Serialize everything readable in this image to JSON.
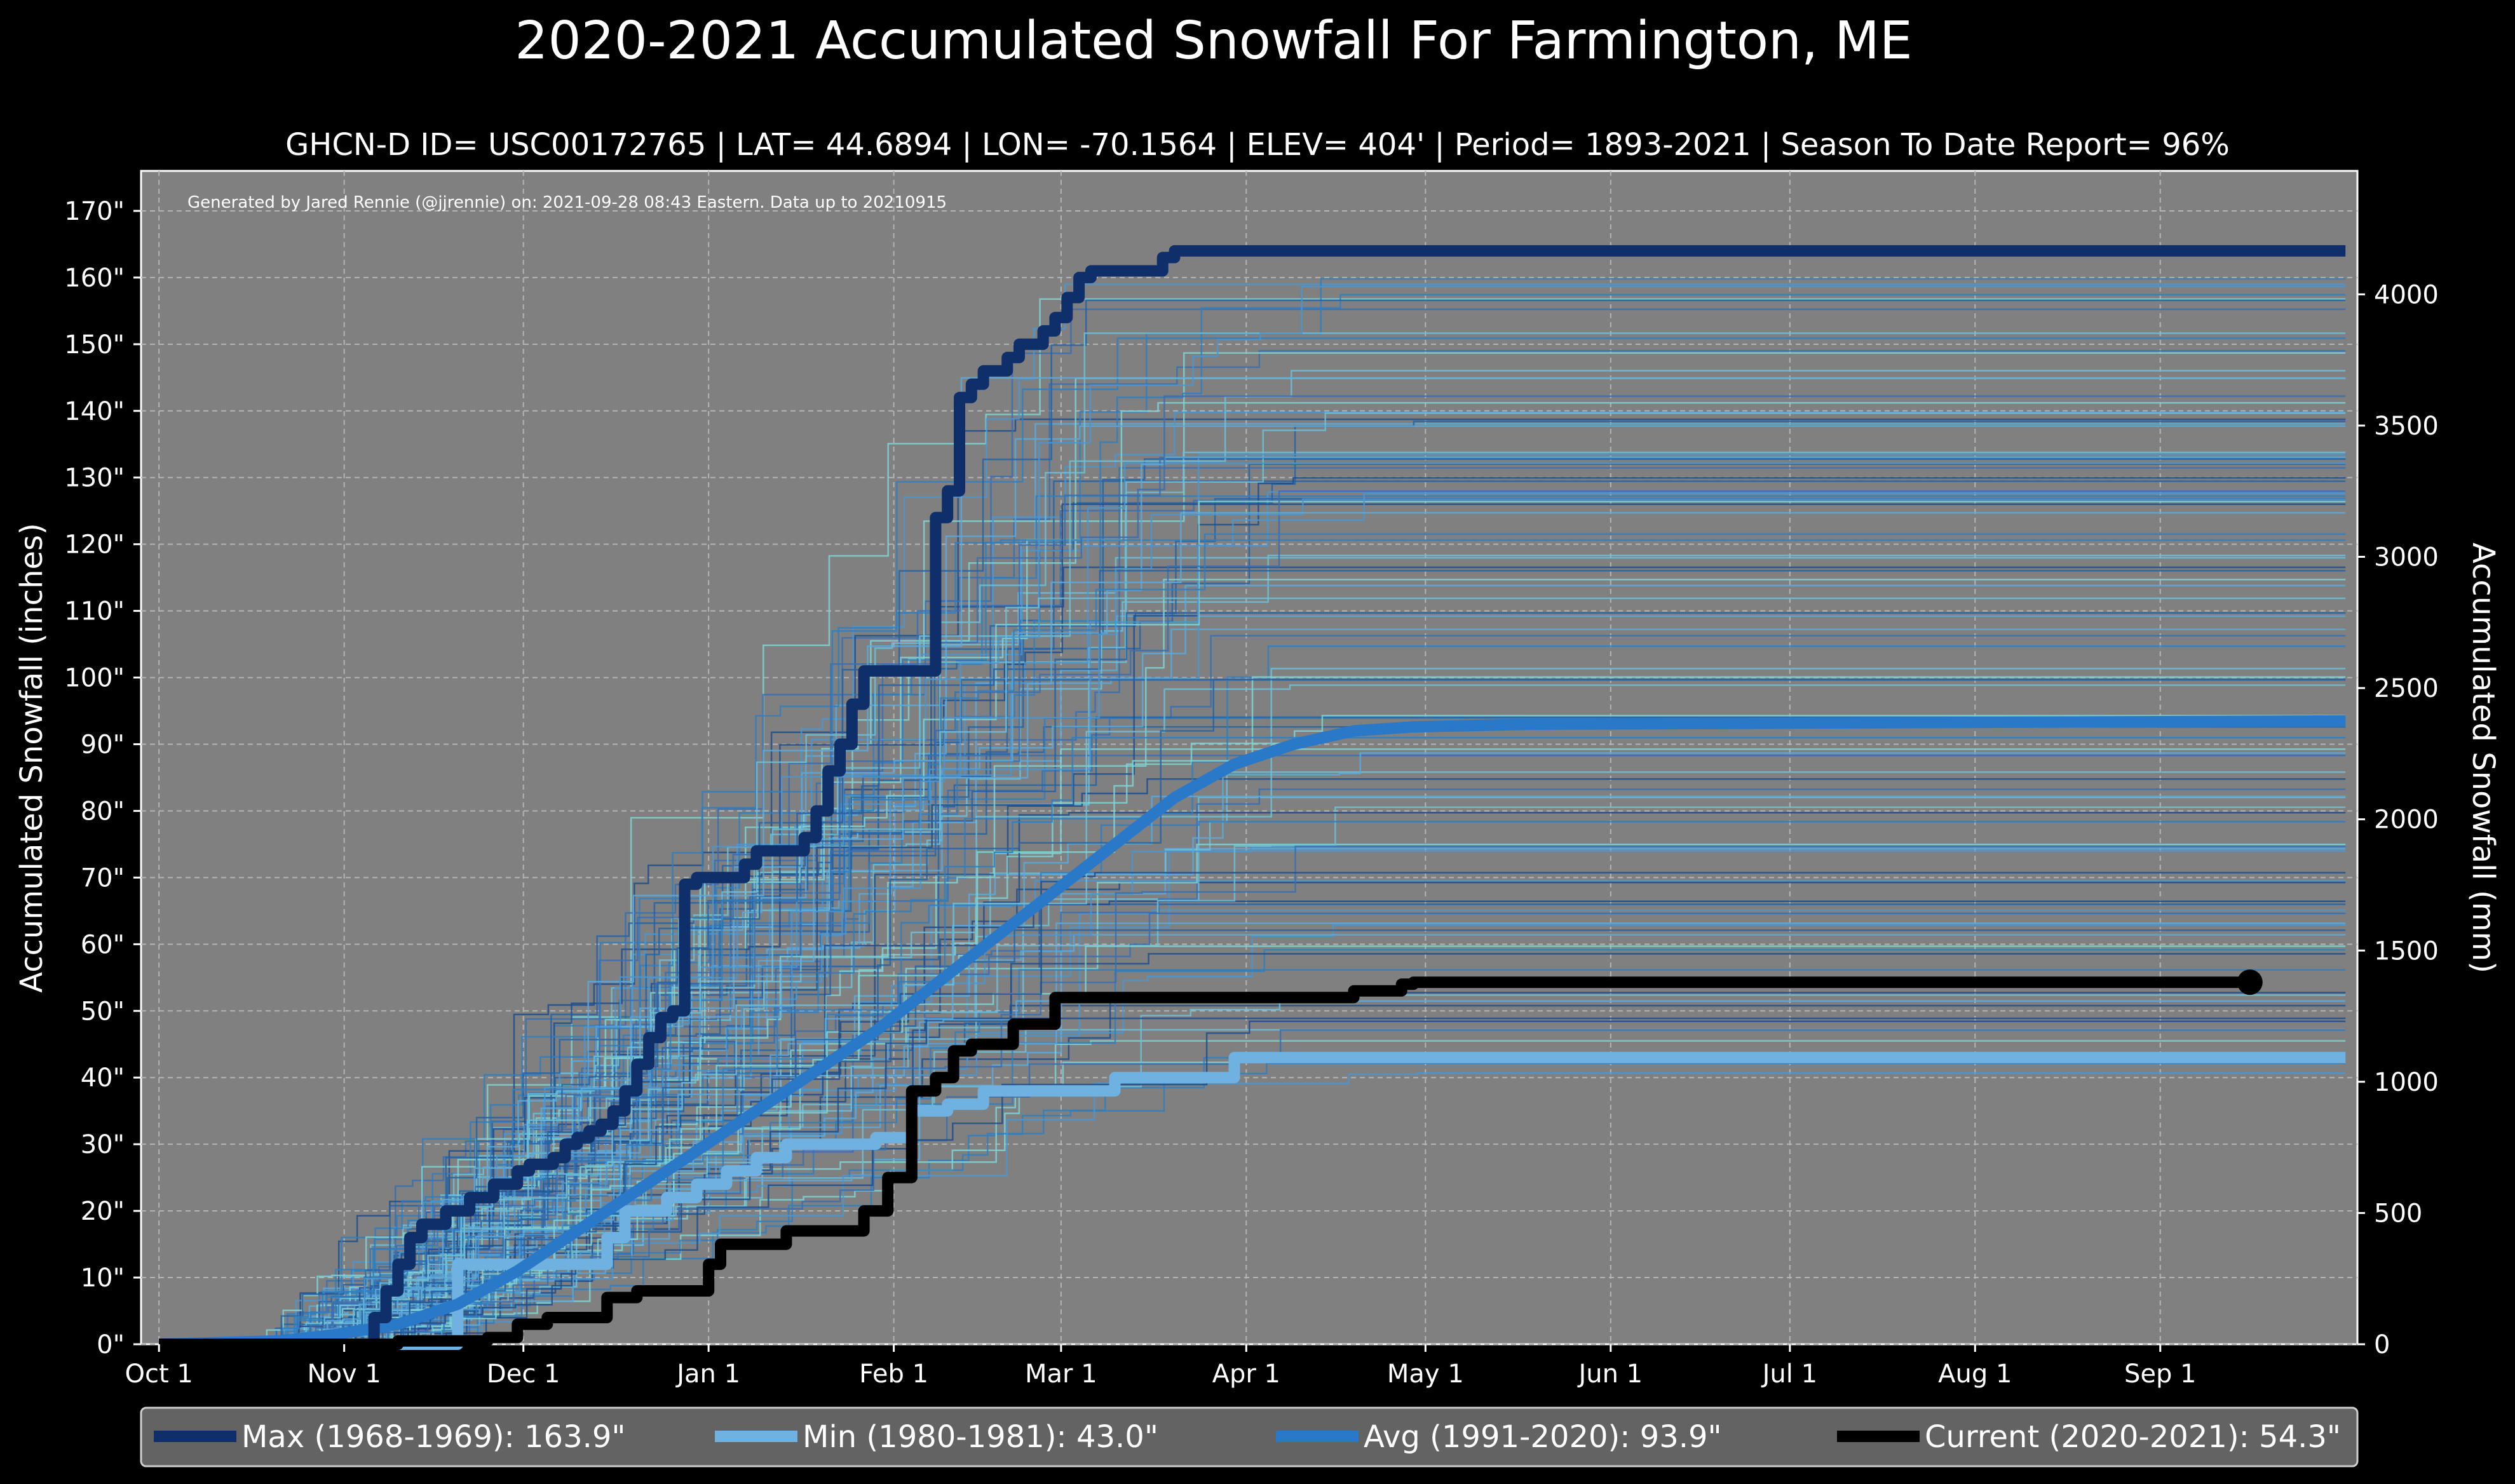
{
  "chart_data": {
    "type": "line",
    "title": "2020-2021 Accumulated Snowfall For Farmington, ME",
    "subtitle": "GHCN-D ID= USC00172765 | LAT= 44.6894 | LON= -70.1564 | ELEV= 404' | Period= 1893-2021 | Season To Date Report= 96%",
    "credit": "Generated by Jared Rennie (@jjrennie) on: 2021-09-28 08:43 Eastern. Data up to 20210915",
    "ylabel": "Accumulated Snowfall (inches)",
    "ylabel_right": "Accumulated Snowfall (mm)",
    "xlim": [
      -3,
      368
    ],
    "ylim": [
      0,
      176
    ],
    "x_ticks": [
      {
        "day": 0,
        "label": "Oct 1"
      },
      {
        "day": 31,
        "label": "Nov 1"
      },
      {
        "day": 61,
        "label": "Dec 1"
      },
      {
        "day": 92,
        "label": "Jan 1"
      },
      {
        "day": 123,
        "label": "Feb 1"
      },
      {
        "day": 151,
        "label": "Mar 1"
      },
      {
        "day": 182,
        "label": "Apr 1"
      },
      {
        "day": 212,
        "label": "May 1"
      },
      {
        "day": 243,
        "label": "Jun 1"
      },
      {
        "day": 273,
        "label": "Jul 1"
      },
      {
        "day": 304,
        "label": "Aug 1"
      },
      {
        "day": 335,
        "label": "Sep 1"
      }
    ],
    "y_ticks": [
      {
        "value": 0,
        "label": "0\""
      },
      {
        "value": 10,
        "label": "10\""
      },
      {
        "value": 20,
        "label": "20\""
      },
      {
        "value": 30,
        "label": "30\""
      },
      {
        "value": 40,
        "label": "40\""
      },
      {
        "value": 50,
        "label": "50\""
      },
      {
        "value": 60,
        "label": "60\""
      },
      {
        "value": 70,
        "label": "70\""
      },
      {
        "value": 80,
        "label": "80\""
      },
      {
        "value": 90,
        "label": "90\""
      },
      {
        "value": 100,
        "label": "100\""
      },
      {
        "value": 110,
        "label": "110\""
      },
      {
        "value": 120,
        "label": "120\""
      },
      {
        "value": 130,
        "label": "130\""
      },
      {
        "value": 140,
        "label": "140\""
      },
      {
        "value": 150,
        "label": "150\""
      },
      {
        "value": 160,
        "label": "160\""
      },
      {
        "value": 170,
        "label": "170\""
      }
    ],
    "y2_ticks": [
      {
        "value": 0,
        "label": "0"
      },
      {
        "value": 500,
        "label": "500"
      },
      {
        "value": 1000,
        "label": "1000"
      },
      {
        "value": 1500,
        "label": "1500"
      },
      {
        "value": 2000,
        "label": "2000"
      },
      {
        "value": 2500,
        "label": "2500"
      },
      {
        "value": 3000,
        "label": "3000"
      },
      {
        "value": 3500,
        "label": "3500"
      },
      {
        "value": 4000,
        "label": "4000"
      }
    ],
    "grid": true,
    "legend_position": "bottom",
    "series": [
      {
        "name": "Max (1968-1969):  163.9\"",
        "color": "#0f2f6b",
        "width": 18,
        "x": [
          0,
          34,
          36,
          38,
          40,
          42,
          44,
          46,
          48,
          50,
          52,
          54,
          56,
          58,
          60,
          62,
          64,
          66,
          68,
          70,
          72,
          74,
          76,
          78,
          80,
          82,
          84,
          86,
          88,
          90,
          92,
          94,
          96,
          98,
          100,
          102,
          104,
          106,
          108,
          110,
          112,
          114,
          116,
          118,
          120,
          122,
          124,
          126,
          128,
          130,
          132,
          134,
          136,
          138,
          140,
          142,
          144,
          146,
          148,
          150,
          152,
          154,
          156,
          158,
          160,
          162,
          164,
          166,
          168,
          170,
          172,
          174,
          176,
          178,
          180,
          182,
          184,
          186,
          188,
          190,
          192,
          194,
          196,
          198,
          200,
          202,
          366
        ],
        "y": [
          0,
          0,
          4,
          8,
          12,
          16,
          18,
          18,
          20,
          20,
          22,
          22,
          24,
          24,
          26,
          27,
          27,
          28,
          30,
          31,
          32,
          33,
          35,
          38,
          42,
          46,
          49,
          50,
          69,
          70,
          70,
          70,
          70,
          72,
          74,
          74,
          74,
          74,
          76,
          80,
          86,
          90,
          96,
          101,
          101,
          101,
          101,
          101,
          101,
          124,
          128,
          142,
          144,
          146,
          146,
          148,
          150,
          150,
          152,
          154,
          157,
          160,
          161,
          161,
          161,
          161,
          161,
          161,
          163,
          164,
          164,
          164,
          164,
          164,
          164,
          164,
          164,
          164,
          164,
          164,
          164,
          164,
          164,
          164,
          164,
          164,
          164
        ]
      },
      {
        "name": "Min (1980-1981):   43.0\"",
        "color": "#6fb1e0",
        "width": 18,
        "x": [
          0,
          48,
          50,
          52,
          60,
          70,
          75,
          78,
          80,
          82,
          85,
          90,
          95,
          100,
          105,
          115,
          120,
          124,
          126,
          130,
          132,
          135,
          138,
          142,
          150,
          157,
          160,
          165,
          170,
          175,
          180,
          190,
          200,
          366
        ],
        "y": [
          0,
          0,
          12,
          12,
          12,
          12,
          16,
          20,
          20,
          20,
          22,
          24,
          26,
          28,
          30,
          30,
          31,
          31,
          35,
          35,
          36,
          36,
          38,
          38,
          38,
          38,
          40,
          40,
          40,
          40,
          43,
          43,
          43,
          43
        ]
      },
      {
        "name": "Avg (1991-2020):   93.9\"",
        "color": "#2a78c8",
        "width": 18,
        "x": [
          0,
          20,
          30,
          40,
          50,
          60,
          70,
          80,
          90,
          100,
          110,
          120,
          130,
          140,
          150,
          160,
          170,
          180,
          190,
          200,
          210,
          220,
          230,
          366
        ],
        "y": [
          0,
          0.5,
          1.5,
          3,
          6,
          11,
          17,
          23,
          29,
          35,
          41,
          47,
          54,
          61,
          68,
          75,
          82,
          87,
          90,
          92,
          92.6,
          92.8,
          93,
          93.5
        ]
      },
      {
        "name": "Current (2020-2021):   54.3\"",
        "color": "#000000",
        "width": 18,
        "x": [
          0,
          30,
          40,
          55,
          60,
          62,
          65,
          70,
          75,
          80,
          85,
          90,
          92,
          94,
          100,
          105,
          108,
          110,
          115,
          118,
          120,
          122,
          124,
          126,
          128,
          130,
          133,
          136,
          140,
          143,
          146,
          150,
          155,
          160,
          170,
          180,
          190,
          198,
          200,
          202,
          205,
          208,
          210,
          220,
          250,
          300,
          350
        ],
        "y": [
          0,
          0,
          0.5,
          1,
          3,
          3,
          4,
          4,
          7,
          8,
          8,
          8,
          12,
          15,
          15,
          17,
          17,
          17,
          17,
          20,
          20,
          25,
          25,
          38,
          38,
          40,
          44,
          45,
          45,
          48,
          48,
          52,
          52,
          52,
          52,
          52,
          52,
          52,
          53,
          53,
          53,
          54,
          54.3,
          54.3,
          54.3,
          54.3,
          54.3
        ],
        "marker_end": true
      }
    ]
  }
}
